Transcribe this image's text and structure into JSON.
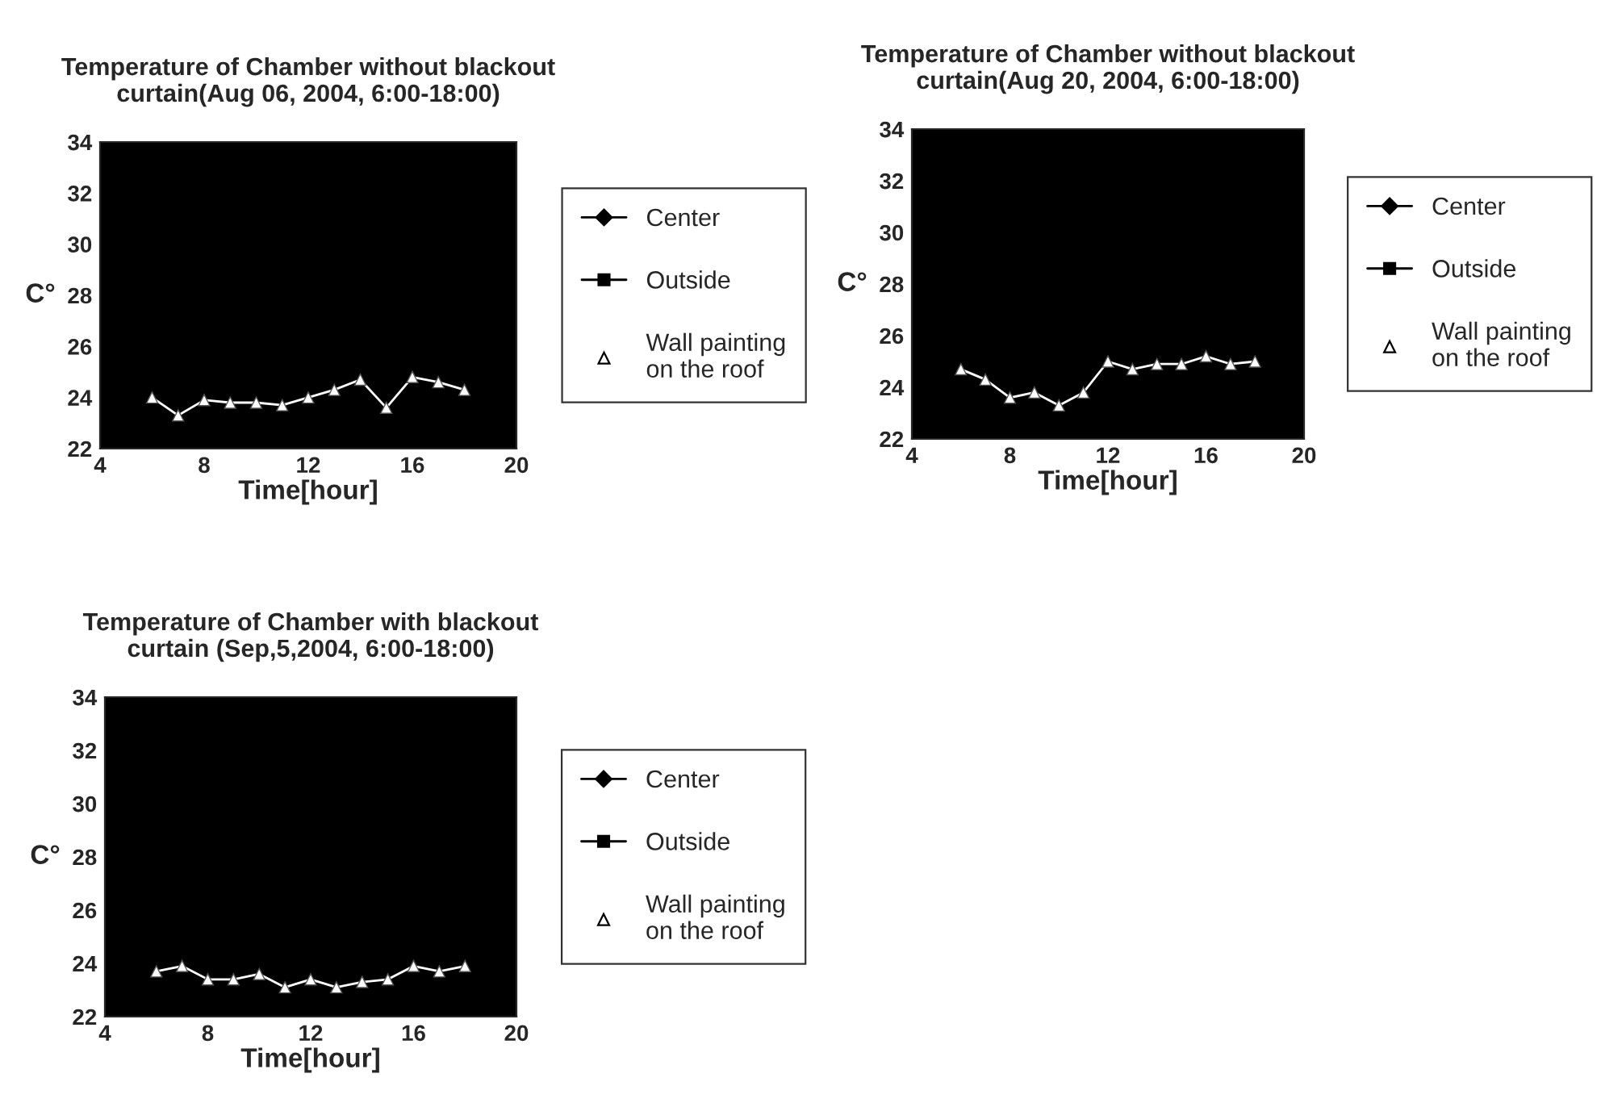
{
  "chart_data": [
    {
      "type": "line",
      "title": "Temperature of Chamber without blackout\ncurtain(Aug 06, 2004, 6:00-18:00)",
      "xlabel": "Time[hour]",
      "ylabel": "C°",
      "xlim": [
        4,
        20
      ],
      "xticks": [
        4,
        8,
        12,
        16,
        20
      ],
      "ylim": [
        22,
        34
      ],
      "yticks": [
        22,
        24,
        26,
        28,
        30,
        32,
        34
      ],
      "legend": "right",
      "x": [
        6,
        7,
        8,
        9,
        10,
        11,
        12,
        13,
        14,
        15,
        16,
        17,
        18
      ],
      "series": [
        {
          "name": "Center",
          "color": "#000000",
          "marker": "diamond",
          "values": [
            null,
            null,
            null,
            null,
            null,
            null,
            null,
            null,
            null,
            null,
            null,
            null,
            null
          ]
        },
        {
          "name": "Outside",
          "color": "#000000",
          "marker": "square",
          "values": [
            null,
            null,
            null,
            null,
            null,
            null,
            null,
            null,
            null,
            null,
            null,
            null,
            null
          ]
        },
        {
          "name": "Wall painting\non the roof",
          "color": "#ffffff",
          "marker": "triangle",
          "values": [
            24.0,
            23.3,
            23.9,
            23.8,
            23.8,
            23.7,
            24.0,
            24.3,
            24.7,
            23.6,
            24.8,
            24.6,
            24.3
          ]
        }
      ]
    },
    {
      "type": "line",
      "title": "Temperature of Chamber without blackout\ncurtain(Aug 20, 2004, 6:00-18:00)",
      "xlabel": "Time[hour]",
      "ylabel": "C°",
      "xlim": [
        4,
        20
      ],
      "xticks": [
        4,
        8,
        12,
        16,
        20
      ],
      "ylim": [
        22,
        34
      ],
      "yticks": [
        22,
        24,
        26,
        28,
        30,
        32,
        34
      ],
      "legend": "right",
      "x": [
        6,
        7,
        8,
        9,
        10,
        11,
        12,
        13,
        14,
        15,
        16,
        17,
        18
      ],
      "series": [
        {
          "name": "Center",
          "color": "#000000",
          "marker": "diamond",
          "values": [
            null,
            null,
            null,
            null,
            null,
            null,
            null,
            null,
            null,
            null,
            null,
            null,
            null
          ]
        },
        {
          "name": "Outside",
          "color": "#000000",
          "marker": "square",
          "values": [
            null,
            null,
            null,
            null,
            null,
            null,
            null,
            null,
            null,
            null,
            null,
            null,
            null
          ]
        },
        {
          "name": "Wall painting\non the roof",
          "color": "#ffffff",
          "marker": "triangle",
          "values": [
            24.7,
            24.3,
            23.6,
            23.8,
            23.3,
            23.8,
            25.0,
            24.7,
            24.9,
            24.9,
            25.2,
            24.9,
            25.0
          ]
        }
      ]
    },
    {
      "type": "line",
      "title": "Temperature of Chamber with blackout\ncurtain (Sep,5,2004, 6:00-18:00)",
      "xlabel": "Time[hour]",
      "ylabel": "C°",
      "xlim": [
        4,
        20
      ],
      "xticks": [
        4,
        8,
        12,
        16,
        20
      ],
      "ylim": [
        22,
        34
      ],
      "yticks": [
        22,
        24,
        26,
        28,
        30,
        32,
        34
      ],
      "legend": "right",
      "x": [
        6,
        7,
        8,
        9,
        10,
        11,
        12,
        13,
        14,
        15,
        16,
        17,
        18
      ],
      "series": [
        {
          "name": "Center",
          "color": "#000000",
          "marker": "diamond",
          "values": [
            null,
            null,
            null,
            null,
            null,
            null,
            null,
            null,
            null,
            null,
            null,
            null,
            null
          ]
        },
        {
          "name": "Outside",
          "color": "#000000",
          "marker": "square",
          "values": [
            null,
            null,
            null,
            null,
            null,
            null,
            null,
            null,
            null,
            null,
            null,
            null,
            null
          ]
        },
        {
          "name": "Wall painting\non the roof",
          "color": "#ffffff",
          "marker": "triangle",
          "values": [
            23.7,
            23.9,
            23.4,
            23.4,
            23.6,
            23.1,
            23.4,
            23.1,
            23.3,
            23.4,
            23.9,
            23.7,
            23.9
          ]
        }
      ]
    }
  ]
}
